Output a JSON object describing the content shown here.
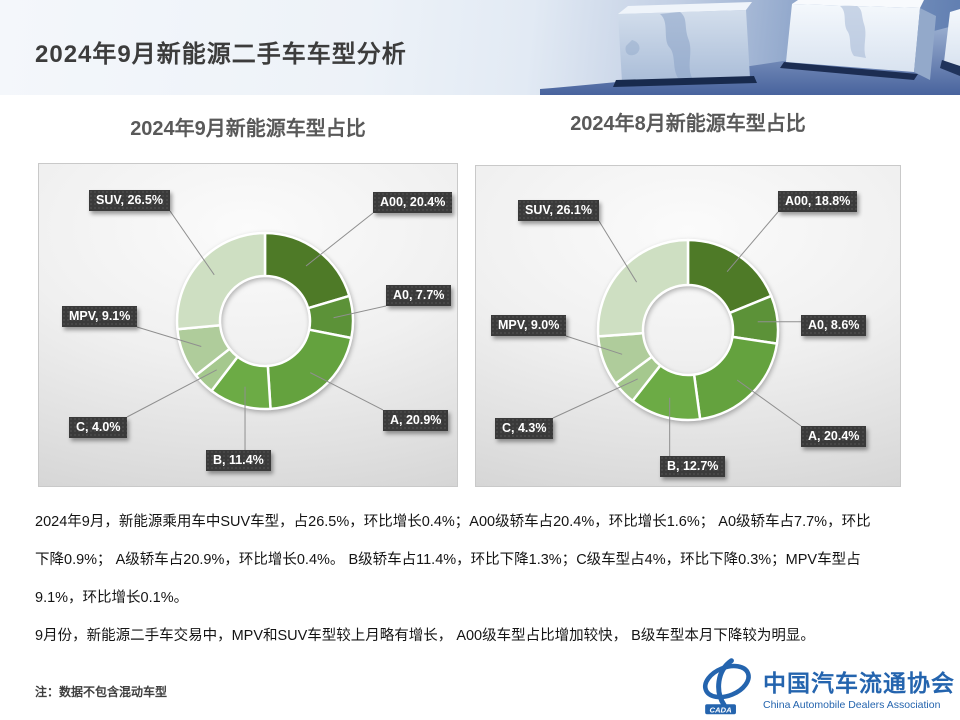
{
  "header": {
    "title": "2024年9月新能源二手车车型分析"
  },
  "chart_data": [
    {
      "type": "pie",
      "subtype": "donut",
      "title": "2024年9月新能源车型占比",
      "categories": [
        "A00",
        "A0",
        "A",
        "B",
        "C",
        "MPV",
        "SUV"
      ],
      "values": [
        20.4,
        7.7,
        20.9,
        11.4,
        4.0,
        9.1,
        26.5
      ],
      "labels": [
        "A00, 20.4%",
        "A0, 7.7%",
        "A, 20.9%",
        "B, 11.4%",
        "C, 4.0%",
        "MPV, 9.1%",
        "SUV, 26.5%"
      ],
      "colors": [
        "#4E7A27",
        "#5C9238",
        "#64A23E",
        "#6CAB45",
        "#A5C88E",
        "#AFCC9B",
        "#CEDFC2"
      ],
      "start_angle_deg": 0,
      "direction": "clockwise",
      "legend": "none",
      "data_labels": "outside-callout"
    },
    {
      "type": "pie",
      "subtype": "donut",
      "title": "2024年8月新能源车型占比",
      "categories": [
        "A00",
        "A0",
        "A",
        "B",
        "C",
        "MPV",
        "SUV"
      ],
      "values": [
        18.8,
        8.6,
        20.4,
        12.7,
        4.3,
        9.0,
        26.1
      ],
      "labels": [
        "A00, 18.8%",
        "A0, 8.6%",
        "A, 20.4%",
        "B, 12.7%",
        "C, 4.3%",
        "MPV, 9.0%",
        "SUV, 26.1%"
      ],
      "colors": [
        "#4E7A27",
        "#5C9238",
        "#64A23E",
        "#6CAB45",
        "#A5C88E",
        "#AFCC9B",
        "#CEDFC2"
      ],
      "start_angle_deg": 0,
      "direction": "clockwise",
      "legend": "none",
      "data_labels": "outside-callout"
    }
  ],
  "body": {
    "lines": [
      "2024年9月，新能源乘用车中SUV车型，占26.5%，环比增长0.4%；A00级轿车占20.4%，环比增长1.6%； A0级轿车占7.7%，环比",
      "下降0.9%； A级轿车占20.9%，环比增长0.4%。 B级轿车占11.4%，环比下降1.3%；C级车型占4%，环比下降0.3%；MPV车型占",
      "9.1%，环比增长0.1%。",
      "9月份，新能源二手车交易中，MPV和SUV车型较上月略有增长， A00级车型占比增加较快， B级车型本月下降较为明显。"
    ]
  },
  "note": "注：数据不包含混动车型",
  "logo": {
    "mark_text": "CADA",
    "name_cn": "中国汽车流通协会",
    "name_en": "China Automobile Dealers Association",
    "color": "#2464ae"
  },
  "theme": {
    "callout_bg": "#3a3a3a",
    "chart_title_color": "#595959",
    "leader_line_color": "#8f8f8f"
  }
}
